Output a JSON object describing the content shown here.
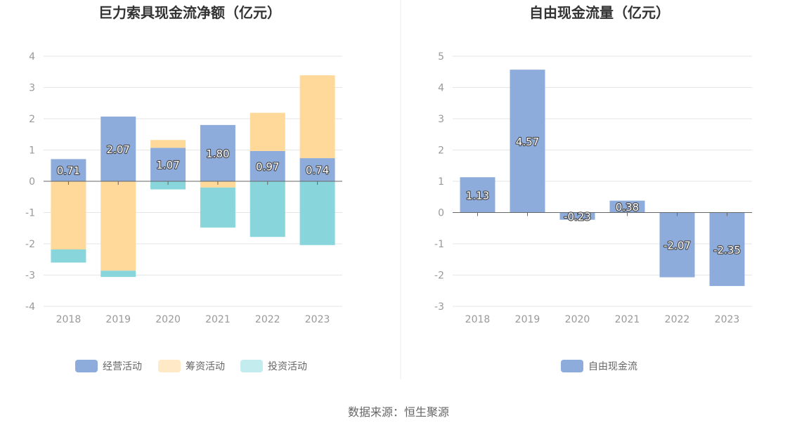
{
  "chart_data": [
    {
      "type": "bar",
      "stacked": true,
      "title": "巨力索具现金流净额（亿元）",
      "categories": [
        "2018",
        "2019",
        "2020",
        "2021",
        "2022",
        "2023"
      ],
      "ylim": [
        -4,
        4
      ],
      "yticks": [
        "4",
        "3",
        "2",
        "1",
        "0",
        "-1",
        "-2",
        "-3",
        "-4"
      ],
      "ytick_values": [
        4,
        3,
        2,
        1,
        0,
        -1,
        -2,
        -3,
        -4
      ],
      "series": [
        {
          "name": "经营活动",
          "color": "#8eacdb",
          "values": [
            0.71,
            2.07,
            1.07,
            1.8,
            0.97,
            0.74
          ]
        },
        {
          "name": "筹资活动",
          "color": "#ffd99a",
          "legend_color": "#ffe9c6",
          "values": [
            -2.18,
            -2.86,
            0.25,
            -0.2,
            1.22,
            2.65
          ]
        },
        {
          "name": "投资活动",
          "color": "#88d6dc",
          "legend_color": "#c3ecef",
          "values": [
            -0.42,
            -0.2,
            -0.26,
            -1.28,
            -1.78,
            -2.04
          ]
        }
      ],
      "data_labels": [
        "0.71",
        "2.07",
        "1.07",
        "1.80",
        "0.97",
        "0.74"
      ],
      "legend": [
        "经营活动",
        "筹资活动",
        "投资活动"
      ],
      "legend_position": "bottom"
    },
    {
      "type": "bar",
      "title": "自由现金流量（亿元）",
      "categories": [
        "2018",
        "2019",
        "2020",
        "2021",
        "2022",
        "2023"
      ],
      "ylim": [
        -3,
        5
      ],
      "yticks": [
        "5",
        "4",
        "3",
        "2",
        "1",
        "0",
        "-1",
        "-2",
        "-3"
      ],
      "ytick_values": [
        5,
        4,
        3,
        2,
        1,
        0,
        -1,
        -2,
        -3
      ],
      "series": [
        {
          "name": "自由现金流",
          "color": "#8eacdb",
          "values": [
            1.13,
            4.57,
            -0.23,
            0.38,
            -2.07,
            -2.35
          ]
        }
      ],
      "data_labels": [
        "1.13",
        "4.57",
        "-0.23",
        "0.38",
        "-2.07",
        "-2.35"
      ],
      "legend": [
        "自由现金流"
      ],
      "legend_position": "bottom"
    }
  ],
  "source": "数据来源：恒生聚源"
}
